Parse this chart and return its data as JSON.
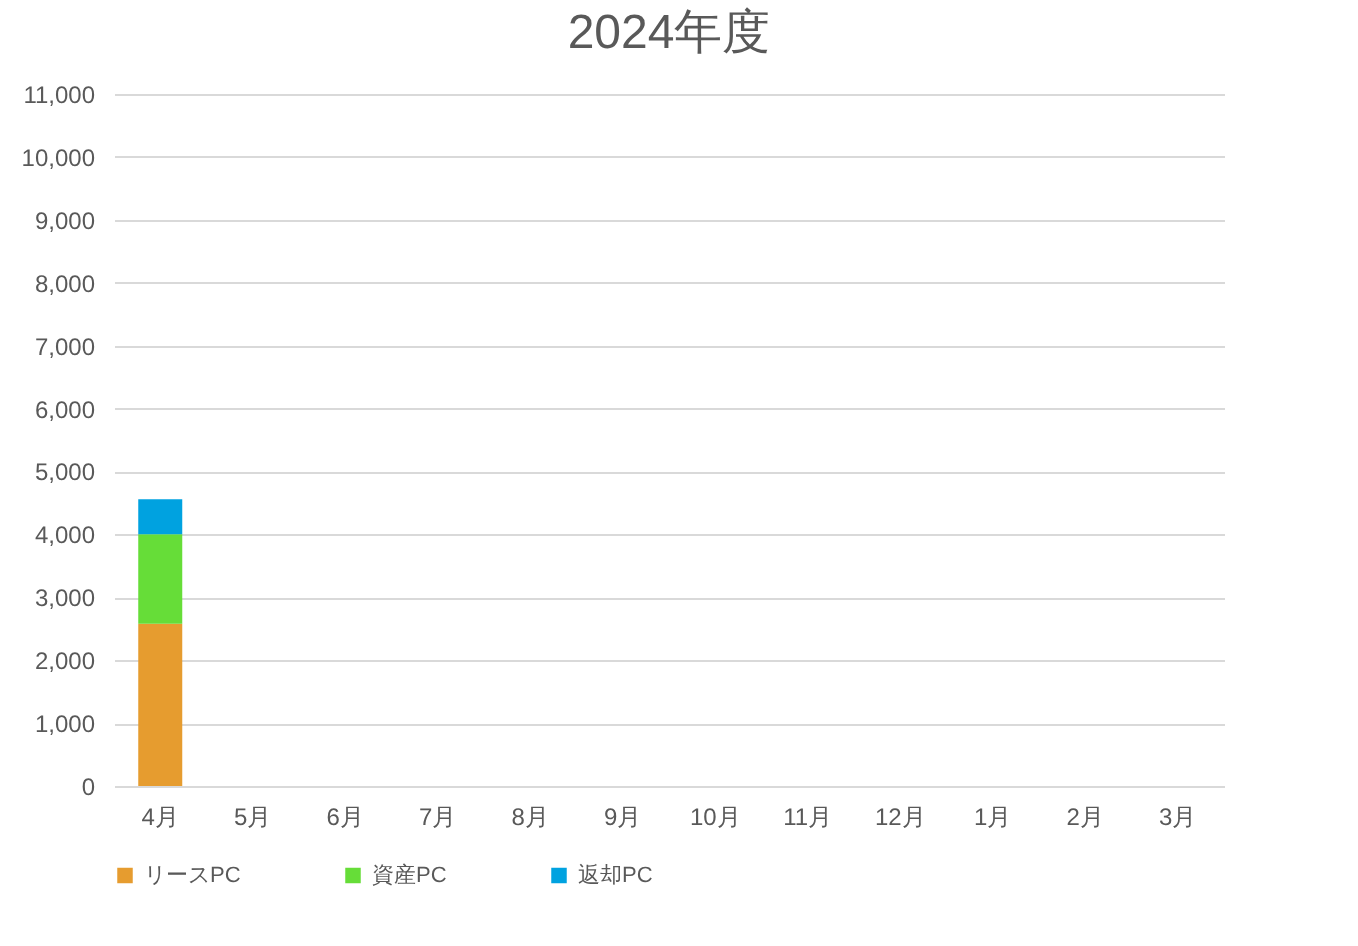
{
  "chart_data": {
    "type": "bar",
    "title": "2024年度",
    "stacked": true,
    "categories": [
      "4月",
      "5月",
      "6月",
      "7月",
      "8月",
      "9月",
      "10月",
      "11月",
      "12月",
      "1月",
      "2月",
      "3月"
    ],
    "series": [
      {
        "name": "リースPC",
        "color": "#e69c2f",
        "values": [
          2580,
          null,
          null,
          null,
          null,
          null,
          null,
          null,
          null,
          null,
          null,
          null
        ]
      },
      {
        "name": "資産PC",
        "color": "#66dd38",
        "values": [
          1420,
          null,
          null,
          null,
          null,
          null,
          null,
          null,
          null,
          null,
          null,
          null
        ]
      },
      {
        "name": "返却PC",
        "color": "#00a2e0",
        "values": [
          560,
          null,
          null,
          null,
          null,
          null,
          null,
          null,
          null,
          null,
          null,
          null
        ]
      }
    ],
    "ylim": [
      0,
      11000
    ],
    "yticks": [
      0,
      {
        "value": 1000,
        "label": "1,000"
      },
      {
        "value": 2000,
        "label": "2,000"
      },
      {
        "value": 3000,
        "label": "3,000"
      },
      {
        "value": 4000,
        "label": "4,000"
      },
      {
        "value": 5000,
        "label": "5,000"
      },
      {
        "value": 6000,
        "label": "6,000"
      },
      {
        "value": 7000,
        "label": "7,000"
      },
      {
        "value": 8000,
        "label": "8,000"
      },
      {
        "value": 9000,
        "label": "9,000"
      },
      {
        "value": 10000,
        "label": "10,000"
      },
      {
        "value": 11000,
        "label": "11,000"
      }
    ],
    "grid": "y",
    "legend": "bottom"
  }
}
